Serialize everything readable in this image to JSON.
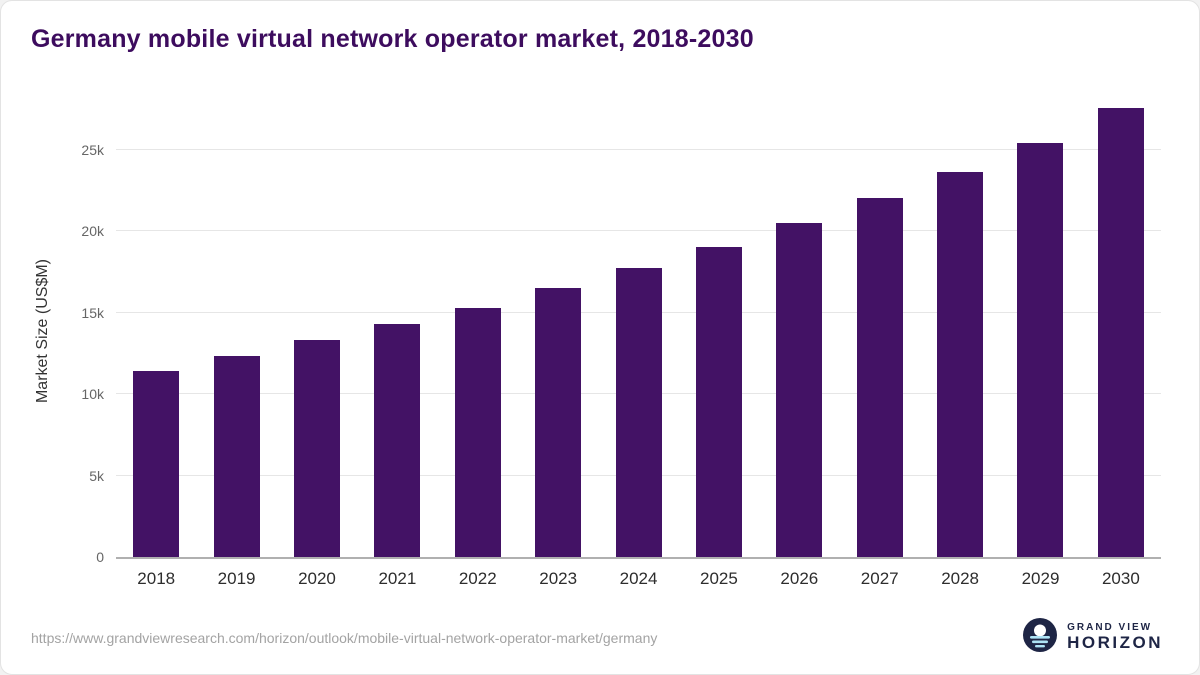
{
  "title": "Germany mobile virtual network operator market, 2018-2030",
  "chart_data": {
    "type": "bar",
    "title": "Germany mobile virtual network operator market, 2018-2030",
    "categories": [
      "2018",
      "2019",
      "2020",
      "2021",
      "2022",
      "2023",
      "2024",
      "2025",
      "2026",
      "2027",
      "2028",
      "2029",
      "2030"
    ],
    "values": [
      11450,
      12350,
      13300,
      14300,
      15300,
      16500,
      17750,
      19050,
      20500,
      22050,
      23650,
      25400,
      27550
    ],
    "xlabel": "",
    "ylabel": "Market Size (US$M)",
    "ylim": [
      0,
      28000
    ],
    "yticks": [
      {
        "value": 0,
        "label": "0"
      },
      {
        "value": 5000,
        "label": "5k"
      },
      {
        "value": 10000,
        "label": "10k"
      },
      {
        "value": 15000,
        "label": "15k"
      },
      {
        "value": 20000,
        "label": "20k"
      },
      {
        "value": 25000,
        "label": "25k"
      }
    ],
    "grid": true,
    "legend": false,
    "bar_color": "#431265"
  },
  "colors": {
    "bar": "#431265",
    "title": "#3d0c5e",
    "gridline": "#e6e6e6",
    "axis_line": "#b0b0b0",
    "y_tick_text": "#666666",
    "x_tick_text": "#2d2d2d",
    "url_text": "#a3a3a3",
    "logo_navy": "#1e2545",
    "logo_light_blue": "#aee3f5"
  },
  "footer": {
    "source_url": "https://www.grandviewresearch.com/horizon/outlook/mobile-virtual-network-operator-market/germany",
    "logo_top": "GRAND VIEW",
    "logo_bottom": "HORIZON"
  }
}
